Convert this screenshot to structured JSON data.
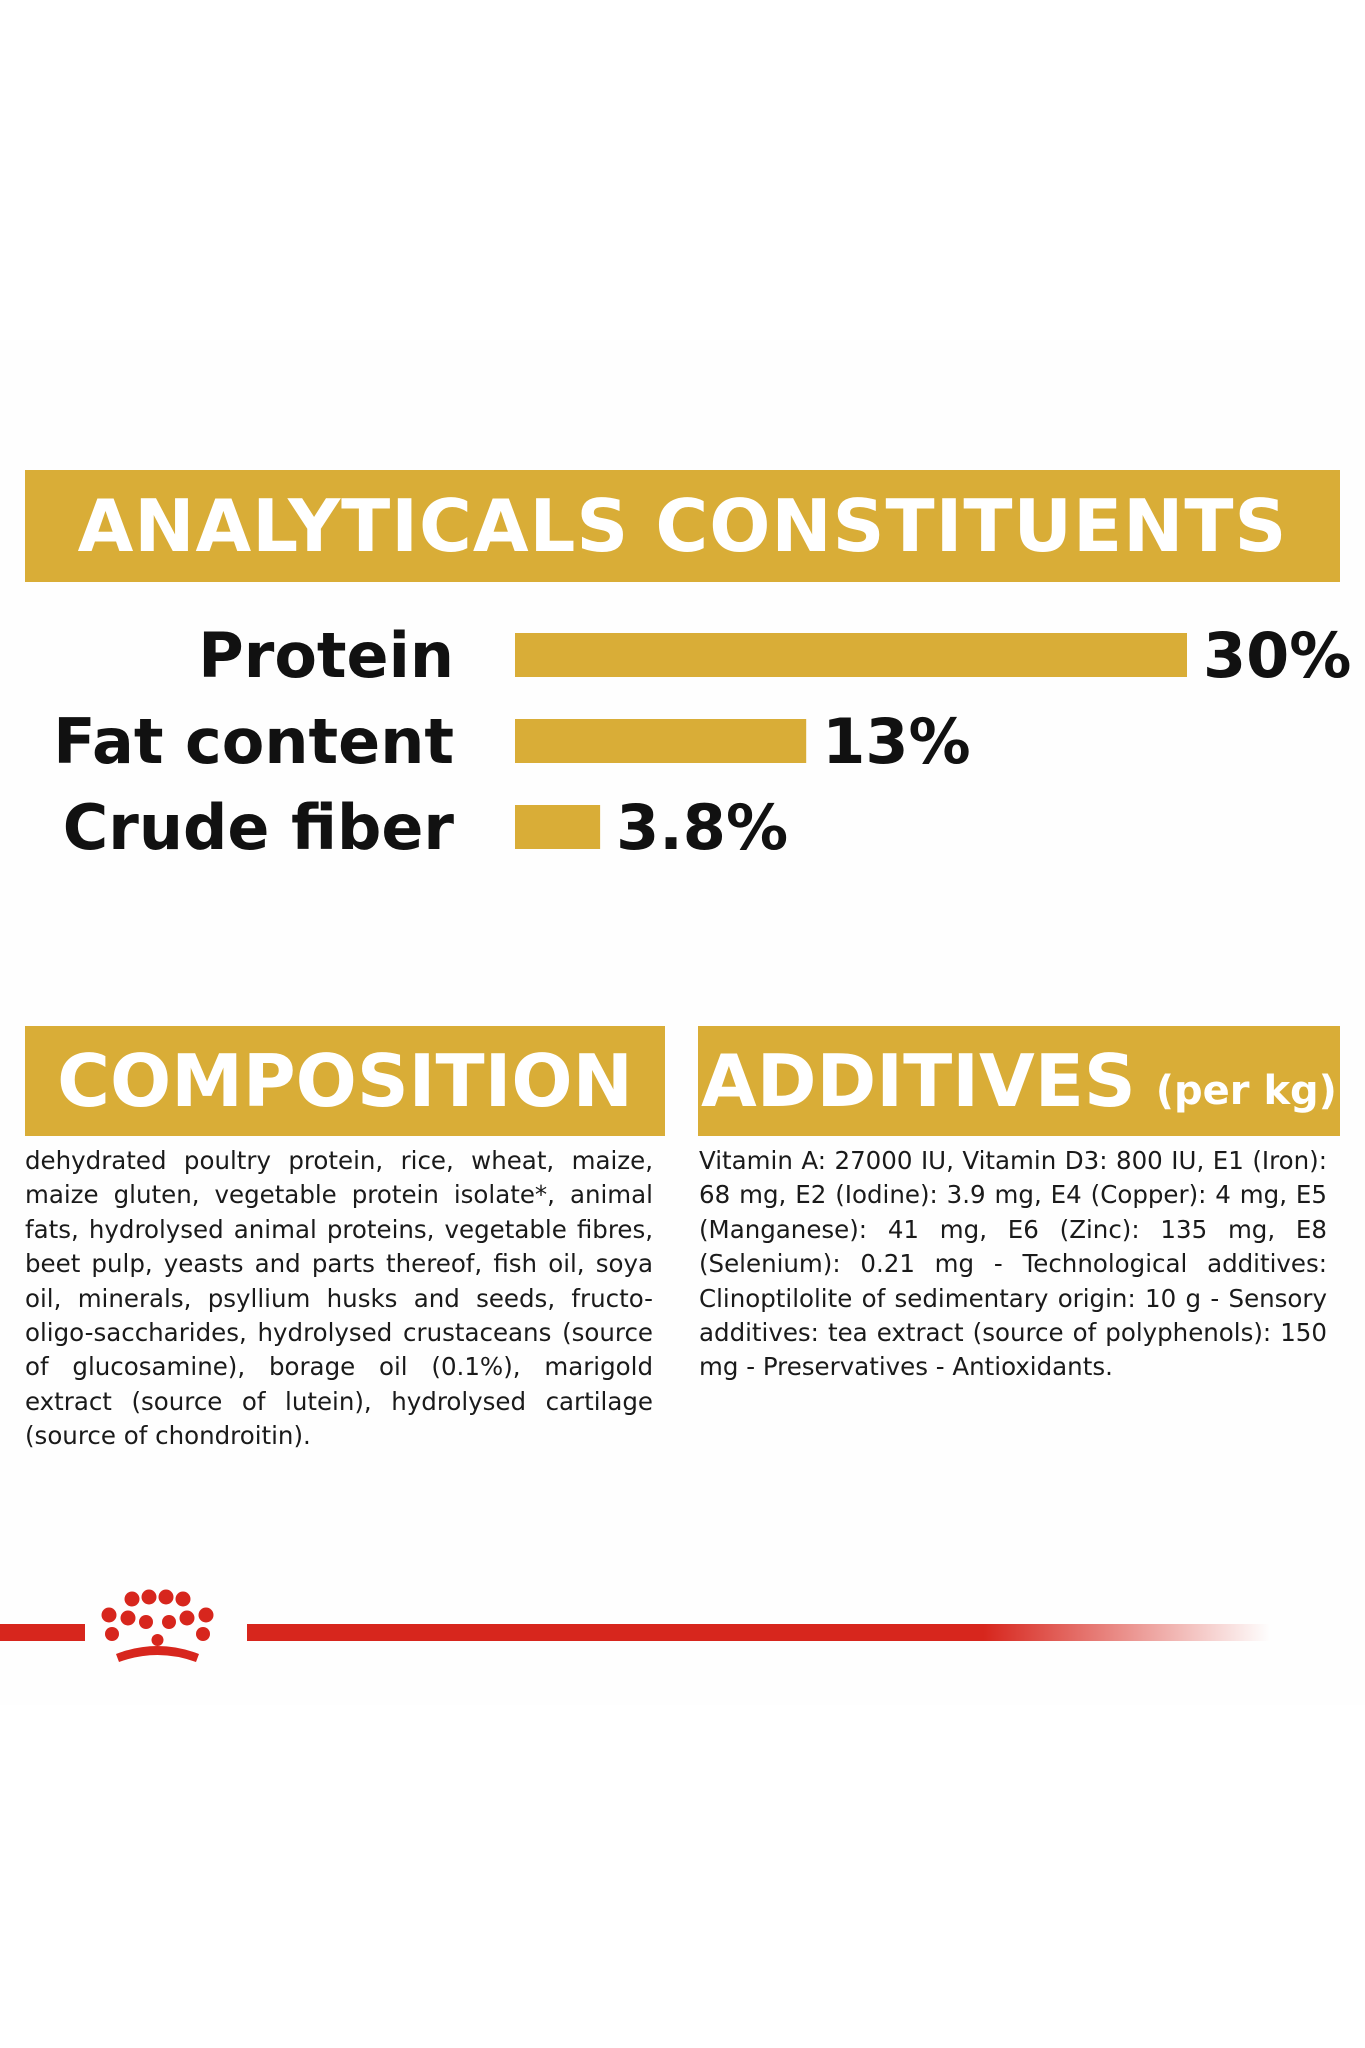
{
  "colors": {
    "accent": "#d9ad37",
    "brand_red": "#d7261d",
    "text": "#111111"
  },
  "analytics": {
    "title": "ANALYTICALS CONSTITUENTS"
  },
  "chart_data": {
    "type": "bar",
    "orientation": "horizontal",
    "categories": [
      "Protein",
      "Fat content",
      "Crude fiber"
    ],
    "values": [
      30,
      13,
      3.8
    ],
    "data_labels": [
      "30%",
      "13%",
      "3.8%"
    ],
    "unit": "%",
    "title": "ANALYTICALS CONSTITUENTS",
    "grid": false,
    "legend": "none"
  },
  "composition": {
    "title": "COMPOSITION",
    "text": "dehydrated poultry protein, rice, wheat, maize, maize gluten, vegetable protein isolate*, animal fats, hydrolysed animal proteins, vegetable fibres, beet pulp, yeasts and parts thereof, fish oil, soya oil, minerals, psyllium husks and seeds, fructo-oligo-saccharides, hydrolysed crustaceans (source of glucosamine), borage oil (0.1%), marigold extract (source of lutein), hydrolysed cartilage (source of chondroitin)."
  },
  "additives": {
    "title": "ADDITIVES",
    "subtitle": "(per kg)",
    "text": "Vitamin A: 27000 IU, Vitamin D3: 800 IU, E1 (Iron): 68 mg, E2 (Iodine): 3.9 mg, E4 (Copper): 4 mg, E5 (Manganese): 41 mg, E6 (Zinc): 135 mg, E8 (Selenium): 0.21 mg - Technological additives: Clinoptilolite of sedimentary origin: 10 g - Sensory additives: tea extract (source of polyphenols): 150 mg - Preservatives - Antioxidants."
  },
  "brand": {
    "logo_icon": "crown-icon"
  }
}
